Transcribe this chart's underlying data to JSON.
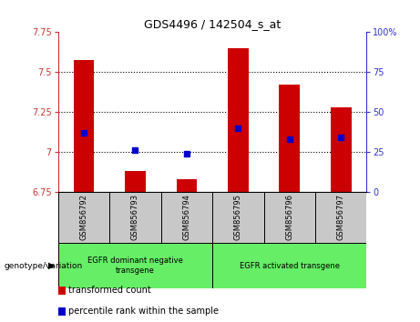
{
  "title": "GDS4496 / 142504_s_at",
  "samples": [
    "GSM856792",
    "GSM856793",
    "GSM856794",
    "GSM856795",
    "GSM856796",
    "GSM856797"
  ],
  "transformed_count": [
    7.575,
    6.88,
    6.83,
    7.65,
    7.42,
    7.28
  ],
  "percentile_rank": [
    7.12,
    7.01,
    6.99,
    7.15,
    7.08,
    7.09
  ],
  "ylim_lo": 6.75,
  "ylim_hi": 7.75,
  "yticks": [
    6.75,
    7.0,
    7.25,
    7.5,
    7.75
  ],
  "ytick_labels": [
    "6.75",
    "7",
    "7.25",
    "7.5",
    "7.75"
  ],
  "right_yticks": [
    0,
    25,
    50,
    75,
    100
  ],
  "right_ytick_labels": [
    "0",
    "25",
    "50",
    "75",
    "100%"
  ],
  "hgrid_vals": [
    7.0,
    7.25,
    7.5
  ],
  "group1_label": "EGFR dominant negative\ntransgene",
  "group2_label": "EGFR activated transgene",
  "bar_color": "#cc0000",
  "dot_color": "#0000cc",
  "group_bg_color": "#66ee66",
  "sample_bg_color": "#c8c8c8",
  "legend_bar_label": "transformed count",
  "legend_dot_label": "percentile rank within the sample",
  "left_axis_color": "#cc3333",
  "right_axis_color": "#3333cc",
  "bar_width": 0.4,
  "title_fontsize": 9,
  "tick_fontsize": 7,
  "sample_fontsize": 6,
  "legend_fontsize": 7
}
